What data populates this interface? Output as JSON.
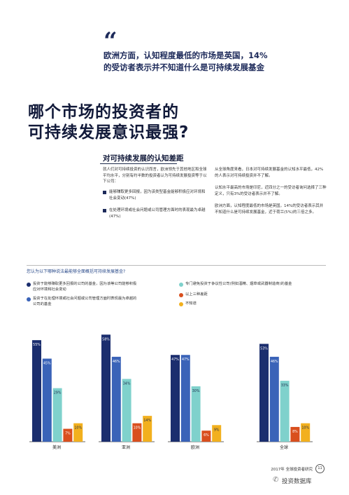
{
  "quote": {
    "mark": "“",
    "text": "欧洲方面，认知程度最低的市场是英国，14%的受访者表示并不知道什么是可持续发展基金"
  },
  "headline": {
    "line1": "哪个市场的投资者的",
    "line2": "可持续发展意识最强?"
  },
  "section_title": "对可持续发展的认知差距",
  "left_para": "就人们对可持续投资的认识而言，欧洲领先于其他地区和全球平均水平，分别有约半数的投资者认为可持续发展投资等于以下公司：",
  "bullets": [
    "能够赚取更多回报，因为该类型基金能够积极应对环境和社会变动(47%)",
    "在处理环境或社会问题或公司管理方面时的表现最为卓越(47%)"
  ],
  "right_para1": "从全球角度来看，日本对可持续发展基金的认知水平最低，42%的人表示对可持续投资并不了解。",
  "right_para2": "认知水平最高的市场是印尼，近四分之一的受访者询问选择了三种定义，只有3%的受访者表示并不了解。",
  "right_para3": "欧洲方面，认知程度最低的市场是英国，14%的受访者表示其并不知道什么是可持续发展基金，近于荷兰(5%)的三倍之多。",
  "question": "您认为以下哪种说法最能够全面概括可持续发展基金?",
  "legend": [
    {
      "label": "投资于能够赚取更多回报的公司的基金，因为该等公司能够积极应对环境和社会变动",
      "color": "#1b2e6e"
    },
    {
      "label": "投资于在处理环境或社会问题或公司管理方面时表现最为卓越的公司的基金",
      "color": "#3a63b8"
    },
    {
      "label": "专门避免投资于争议性公司(例如酒精、烟草或武器制造商)的基金",
      "color": "#7fd1cc"
    },
    {
      "label": "以上三种差距",
      "color": "#d94f1e"
    },
    {
      "label": "不知道",
      "color": "#f2b01e"
    }
  ],
  "chart_data": {
    "type": "bar",
    "categories": [
      "美洲",
      "亚洲",
      "欧洲",
      "全球"
    ],
    "series": [
      {
        "color": "#1b2e6e",
        "values": [
          55,
          58,
          47,
          53
        ]
      },
      {
        "color": "#3a63b8",
        "values": [
          45,
          46,
          47,
          46
        ]
      },
      {
        "color": "#7fd1cc",
        "values": [
          29,
          34,
          30,
          33
        ]
      },
      {
        "color": "#d94f1e",
        "values": [
          7,
          10,
          6,
          8
        ]
      },
      {
        "color": "#f2b01e",
        "values": [
          10,
          14,
          9,
          10
        ]
      }
    ],
    "value_labels": [
      [
        "55%",
        "45%",
        "29%",
        "7%",
        "10%"
      ],
      [
        "58%",
        "46%",
        "34%",
        "10%",
        "14%"
      ],
      [
        "47%",
        "47%",
        "30%",
        "6%",
        "9%"
      ],
      [
        "53%",
        "46%",
        "33%",
        "8%",
        "10%"
      ]
    ],
    "ylim": [
      0,
      60
    ],
    "grid": false
  },
  "footer": "2017年 全球投资者研究",
  "page_number": "11",
  "watermark": "投资数据库",
  "watermark_icon": "wechat-icon"
}
